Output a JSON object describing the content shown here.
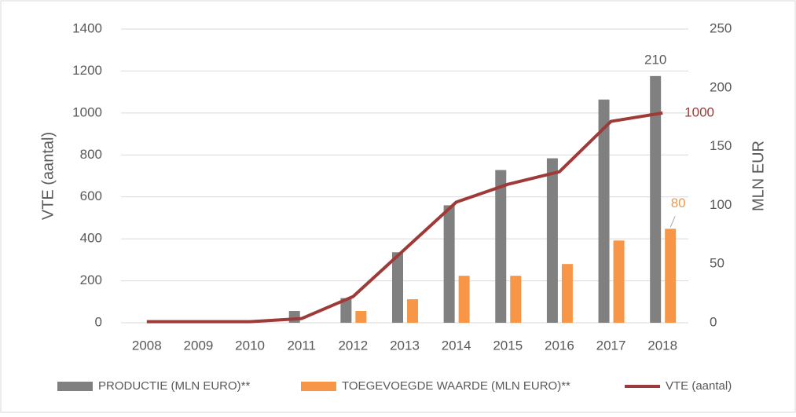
{
  "chart_data": {
    "type": "bar_line",
    "categories": [
      "2008",
      "2009",
      "2010",
      "2011",
      "2012",
      "2013",
      "2014",
      "2015",
      "2016",
      "2017",
      "2018"
    ],
    "ylabel": "VTE (aantal)",
    "y2label": "MLN EUR",
    "ylim": [
      0,
      1400
    ],
    "yticks": [
      0,
      200,
      400,
      600,
      800,
      1000,
      1200,
      1400
    ],
    "y2lim": [
      0,
      250
    ],
    "y2ticks": [
      0,
      50,
      100,
      150,
      200,
      250
    ],
    "legend": "bottom",
    "series": [
      {
        "name": "PRODUCTIE (MLN EURO)**",
        "type": "bar",
        "axis": "y2",
        "color": "#808080",
        "values": [
          0,
          0,
          0,
          10,
          21,
          60,
          100,
          130,
          140,
          190,
          210
        ]
      },
      {
        "name": "TOEGEVOEGDE WAARDE (MLN EURO)**",
        "type": "bar",
        "axis": "y2",
        "color": "#f79646",
        "values": [
          0,
          0,
          0,
          0,
          10,
          20,
          40,
          40,
          50,
          70,
          80
        ]
      },
      {
        "name": "VTE (aantal)",
        "type": "line",
        "axis": "y",
        "color": "#9e3a38",
        "values": [
          5,
          5,
          5,
          20,
          125,
          350,
          575,
          660,
          720,
          960,
          1000
        ]
      }
    ]
  }
}
